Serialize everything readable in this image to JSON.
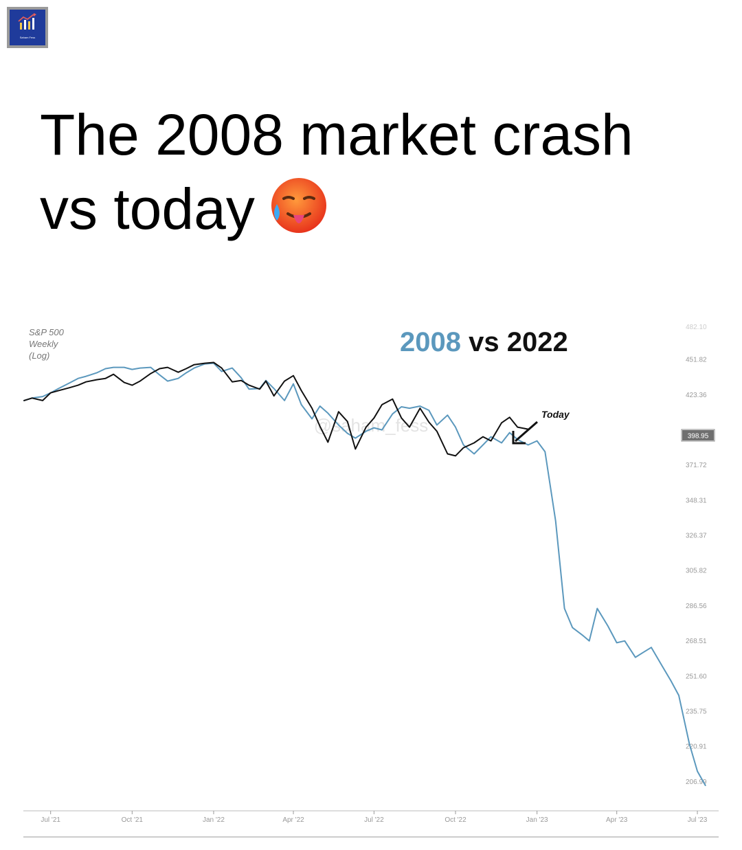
{
  "logo": {
    "text": "Saham Fess"
  },
  "headline": {
    "line1": "The 2008 market crash",
    "line2": "vs today"
  },
  "chart_data": {
    "type": "line",
    "title_parts": [
      "2008",
      "vs",
      "2022"
    ],
    "ylabel_lines": [
      "S&P 500",
      "Weekly",
      "(Log)"
    ],
    "annotation": "Today",
    "current_price": "398.95",
    "watermark": "@saham_fess",
    "y_scale": "log",
    "ylim": [
      201,
      480
    ],
    "top_clipped_tick": "482.10",
    "y_ticks": [
      {
        "label": "451.82",
        "value": 451.82
      },
      {
        "label": "423.36",
        "value": 423.36
      },
      {
        "label": "371.72",
        "value": 371.72
      },
      {
        "label": "348.31",
        "value": 348.31
      },
      {
        "label": "326.37",
        "value": 326.37
      },
      {
        "label": "305.82",
        "value": 305.82
      },
      {
        "label": "286.56",
        "value": 286.56
      },
      {
        "label": "268.51",
        "value": 268.51
      },
      {
        "label": "251.60",
        "value": 251.6
      },
      {
        "label": "235.75",
        "value": 235.75
      },
      {
        "label": "220.91",
        "value": 220.91
      },
      {
        "label": "206.99",
        "value": 206.99
      }
    ],
    "x_ticks": [
      {
        "label": "Jul '21",
        "value": "2021-07-01"
      },
      {
        "label": "Oct '21",
        "value": "2021-10-01"
      },
      {
        "label": "Jan '22",
        "value": "2022-01-01"
      },
      {
        "label": "Apr '22",
        "value": "2022-04-01"
      },
      {
        "label": "Jul '22",
        "value": "2022-07-01"
      },
      {
        "label": "Oct '22",
        "value": "2022-10-01"
      },
      {
        "label": "Jan '23",
        "value": "2023-01-01"
      },
      {
        "label": "Apr '23",
        "value": "2023-04-01"
      },
      {
        "label": "Jul '23",
        "value": "2023-07-01"
      }
    ],
    "xlim": [
      "2021-06-01",
      "2023-07-25"
    ],
    "colors": {
      "2008": "#5b98bd",
      "2022": "#111111"
    },
    "series": [
      {
        "name": "2008",
        "points": [
          [
            "2021-06-01",
            418.5
          ],
          [
            "2021-06-10",
            420.4
          ],
          [
            "2021-06-22",
            421.6
          ],
          [
            "2021-07-01",
            424.5
          ],
          [
            "2021-07-10",
            427.9
          ],
          [
            "2021-07-22",
            432.2
          ],
          [
            "2021-08-01",
            436.0
          ],
          [
            "2021-08-10",
            437.7
          ],
          [
            "2021-08-22",
            440.5
          ],
          [
            "2021-09-01",
            443.9
          ],
          [
            "2021-09-10",
            445.0
          ],
          [
            "2021-09-22",
            445.0
          ],
          [
            "2021-10-01",
            443.3
          ],
          [
            "2021-10-10",
            444.4
          ],
          [
            "2021-10-22",
            445.0
          ],
          [
            "2021-11-01",
            438.8
          ],
          [
            "2021-11-10",
            433.8
          ],
          [
            "2021-11-22",
            436.0
          ],
          [
            "2021-12-01",
            440.5
          ],
          [
            "2021-12-10",
            444.4
          ],
          [
            "2021-12-22",
            447.8
          ],
          [
            "2022-01-01",
            448.4
          ],
          [
            "2022-01-10",
            441.6
          ],
          [
            "2022-01-22",
            444.4
          ],
          [
            "2022-02-01",
            436.6
          ],
          [
            "2022-02-10",
            427.4
          ],
          [
            "2022-02-22",
            427.9
          ],
          [
            "2022-03-01",
            434.3
          ],
          [
            "2022-03-10",
            427.9
          ],
          [
            "2022-03-22",
            418.5
          ],
          [
            "2022-04-01",
            431.6
          ],
          [
            "2022-04-10",
            415.3
          ],
          [
            "2022-04-22",
            404.6
          ],
          [
            "2022-05-01",
            414.2
          ],
          [
            "2022-05-10",
            408.8
          ],
          [
            "2022-05-22",
            400.0
          ],
          [
            "2022-06-01",
            393.9
          ],
          [
            "2022-06-10",
            390.4
          ],
          [
            "2022-06-22",
            395.4
          ],
          [
            "2022-07-01",
            397.9
          ],
          [
            "2022-07-10",
            396.4
          ],
          [
            "2022-07-22",
            408.3
          ],
          [
            "2022-08-01",
            413.7
          ],
          [
            "2022-08-10",
            412.6
          ],
          [
            "2022-08-22",
            414.2
          ],
          [
            "2022-09-01",
            411.0
          ],
          [
            "2022-09-10",
            400.0
          ],
          [
            "2022-09-22",
            407.3
          ],
          [
            "2022-10-01",
            398.4
          ],
          [
            "2022-10-10",
            385.5
          ],
          [
            "2022-10-22",
            379.2
          ],
          [
            "2022-11-01",
            385.5
          ],
          [
            "2022-11-10",
            391.4
          ],
          [
            "2022-11-22",
            387.0
          ],
          [
            "2022-12-01",
            394.4
          ],
          [
            "2022-12-10",
            389.4
          ],
          [
            "2022-12-22",
            385.5
          ],
          [
            "2023-01-01",
            388.4
          ],
          [
            "2023-01-10",
            380.7
          ],
          [
            "2023-01-22",
            335.0
          ],
          [
            "2023-02-01",
            284.9
          ],
          [
            "2023-02-10",
            275.0
          ],
          [
            "2023-02-22",
            270.9
          ],
          [
            "2023-03-01",
            268.3
          ],
          [
            "2023-03-10",
            284.9
          ],
          [
            "2023-03-22",
            275.8
          ],
          [
            "2023-04-01",
            267.4
          ],
          [
            "2023-04-10",
            268.3
          ],
          [
            "2023-04-22",
            260.3
          ],
          [
            "2023-05-01",
            262.7
          ],
          [
            "2023-05-10",
            265.1
          ],
          [
            "2023-05-22",
            256.3
          ],
          [
            "2023-06-01",
            249.3
          ],
          [
            "2023-06-10",
            242.6
          ],
          [
            "2023-06-22",
            221.8
          ],
          [
            "2023-07-01",
            210.8
          ],
          [
            "2023-07-10",
            205.4
          ]
        ]
      },
      {
        "name": "2022",
        "points": [
          [
            "2021-06-01",
            418.5
          ],
          [
            "2021-06-10",
            420.4
          ],
          [
            "2021-06-22",
            418.5
          ],
          [
            "2021-07-01",
            424.5
          ],
          [
            "2021-07-10",
            426.3
          ],
          [
            "2021-07-22",
            428.5
          ],
          [
            "2021-08-01",
            430.5
          ],
          [
            "2021-08-10",
            433.2
          ],
          [
            "2021-08-22",
            434.9
          ],
          [
            "2021-09-01",
            436.0
          ],
          [
            "2021-09-10",
            439.3
          ],
          [
            "2021-09-22",
            432.7
          ],
          [
            "2021-10-01",
            430.5
          ],
          [
            "2021-10-10",
            433.8
          ],
          [
            "2021-10-22",
            439.9
          ],
          [
            "2021-11-01",
            443.9
          ],
          [
            "2021-11-10",
            445.0
          ],
          [
            "2021-11-22",
            441.0
          ],
          [
            "2021-12-01",
            443.9
          ],
          [
            "2021-12-10",
            447.2
          ],
          [
            "2021-12-22",
            448.4
          ],
          [
            "2022-01-01",
            449.0
          ],
          [
            "2022-01-10",
            444.4
          ],
          [
            "2022-01-22",
            433.2
          ],
          [
            "2022-02-01",
            434.3
          ],
          [
            "2022-02-10",
            430.5
          ],
          [
            "2022-02-22",
            427.4
          ],
          [
            "2022-03-01",
            433.8
          ],
          [
            "2022-03-10",
            422.1
          ],
          [
            "2022-03-22",
            433.8
          ],
          [
            "2022-04-01",
            438.2
          ],
          [
            "2022-04-10",
            426.3
          ],
          [
            "2022-04-22",
            412.6
          ],
          [
            "2022-05-01",
            399.0
          ],
          [
            "2022-05-10",
            387.5
          ],
          [
            "2022-05-22",
            409.9
          ],
          [
            "2022-06-01",
            402.6
          ],
          [
            "2022-06-10",
            382.6
          ],
          [
            "2022-06-22",
            398.4
          ],
          [
            "2022-07-01",
            405.2
          ],
          [
            "2022-07-10",
            415.3
          ],
          [
            "2022-07-22",
            419.6
          ],
          [
            "2022-08-01",
            405.2
          ],
          [
            "2022-08-10",
            398.4
          ],
          [
            "2022-08-22",
            412.6
          ],
          [
            "2022-09-01",
            402.1
          ],
          [
            "2022-09-10",
            395.4
          ],
          [
            "2022-09-22",
            379.2
          ],
          [
            "2022-10-01",
            377.8
          ],
          [
            "2022-10-10",
            383.5
          ],
          [
            "2022-10-22",
            387.0
          ],
          [
            "2022-11-01",
            391.4
          ],
          [
            "2022-11-10",
            388.4
          ],
          [
            "2022-11-22",
            401.6
          ],
          [
            "2022-12-01",
            405.7
          ],
          [
            "2022-12-10",
            398.4
          ],
          [
            "2022-12-22",
            396.9
          ]
        ]
      }
    ]
  }
}
